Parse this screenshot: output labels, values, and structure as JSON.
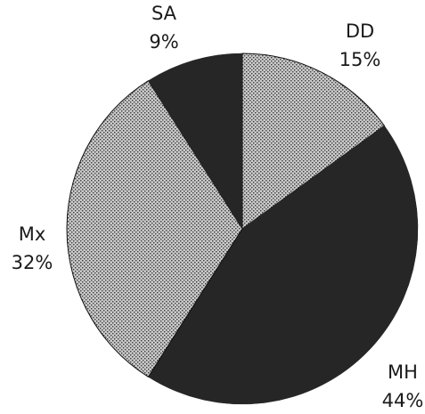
{
  "chart_data": {
    "type": "pie",
    "title": "",
    "slices": [
      {
        "label": "DD",
        "value": 15,
        "value_label": "15%",
        "fill": "stipple"
      },
      {
        "label": "MH",
        "value": 44,
        "value_label": "44%",
        "fill": "solid"
      },
      {
        "label": "Mx",
        "value": 32,
        "value_label": "32%",
        "fill": "stipple"
      },
      {
        "label": "SA",
        "value": 9,
        "value_label": "9%",
        "fill": "solid"
      }
    ],
    "start_angle_deg": 0,
    "direction": "clockwise",
    "legend": "none",
    "colors": {
      "solid": "#262626",
      "stipple_base": "#c9c9c9",
      "stipple_dot": "#3a3a3a",
      "edge": "#111111"
    }
  }
}
